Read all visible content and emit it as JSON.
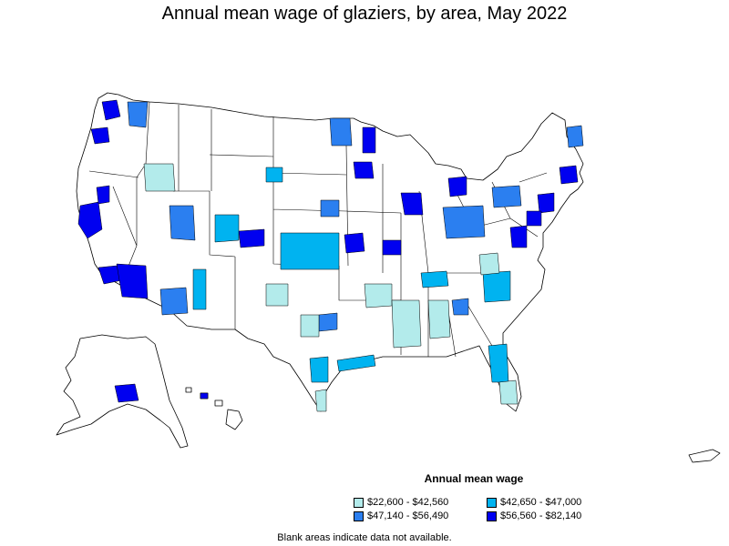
{
  "title": "Annual mean wage of glaziers, by area, May 2022",
  "legend": {
    "title": "Annual mean wage",
    "items": [
      {
        "label": "$22,600 - $42,560",
        "color": "#b3ebeb"
      },
      {
        "label": "$42,650 - $47,000",
        "color": "#00b3f0"
      },
      {
        "label": "$47,140 - $56,490",
        "color": "#2b7ff0"
      },
      {
        "label": "$56,560 - $82,140",
        "color": "#0000f0"
      }
    ]
  },
  "note": "Blank areas indicate data not available.",
  "colors": {
    "no_data": "#ffffff",
    "border": "#000000"
  }
}
